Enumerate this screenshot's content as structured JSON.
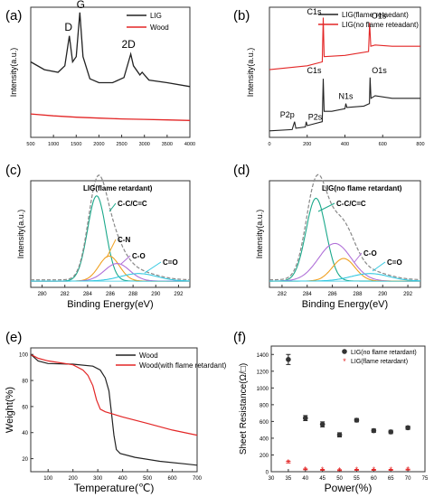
{
  "panels": {
    "a": {
      "tag": "(a)"
    },
    "b": {
      "tag": "(b)"
    },
    "c": {
      "tag": "(c)"
    },
    "d": {
      "tag": "(d)"
    },
    "e": {
      "tag": "(e)"
    },
    "f": {
      "tag": "(f)"
    }
  },
  "colors": {
    "black": "#222222",
    "red": "#e32626",
    "orange": "#f0a020",
    "cyan": "#35c8e0",
    "teal": "#1aa88a",
    "purple": "#b070d8",
    "dashed": "#888888"
  },
  "chart_data": [
    {
      "id": "a",
      "type": "line",
      "title": "",
      "xlabel": "",
      "ylabel": "Intensity(a.u.)",
      "xlim": [
        500,
        4000
      ],
      "xticks": [
        "500",
        "1000",
        "1500",
        "2000",
        "2500",
        "3000",
        "3500",
        "4000"
      ],
      "legend": {
        "placement": "top-right",
        "entries": [
          "LIG",
          "Wood"
        ]
      },
      "annotations": [
        "D",
        "G",
        "2D"
      ],
      "series": [
        {
          "name": "LIG",
          "color": "black",
          "points": [
            [
              500,
              0.58
            ],
            [
              800,
              0.52
            ],
            [
              1100,
              0.5
            ],
            [
              1250,
              0.55
            ],
            [
              1350,
              0.78
            ],
            [
              1420,
              0.58
            ],
            [
              1500,
              0.62
            ],
            [
              1580,
              0.96
            ],
            [
              1650,
              0.62
            ],
            [
              1800,
              0.45
            ],
            [
              2000,
              0.42
            ],
            [
              2300,
              0.42
            ],
            [
              2550,
              0.46
            ],
            [
              2650,
              0.58
            ],
            [
              2700,
              0.64
            ],
            [
              2760,
              0.55
            ],
            [
              2900,
              0.48
            ],
            [
              2950,
              0.5
            ],
            [
              3100,
              0.44
            ],
            [
              3500,
              0.42
            ],
            [
              4000,
              0.39
            ]
          ]
        },
        {
          "name": "Wood",
          "color": "red",
          "points": [
            [
              500,
              0.18
            ],
            [
              1000,
              0.165
            ],
            [
              1500,
              0.155
            ],
            [
              2000,
              0.148
            ],
            [
              2500,
              0.142
            ],
            [
              3000,
              0.138
            ],
            [
              3500,
              0.134
            ],
            [
              4000,
              0.13
            ]
          ]
        }
      ]
    },
    {
      "id": "b",
      "type": "line",
      "title": "",
      "xlabel": "",
      "ylabel": "Intensity(a.u.)",
      "xlim": [
        0,
        800
      ],
      "xticks": [
        "0",
        "200",
        "400",
        "600",
        "800"
      ],
      "legend": {
        "placement": "top-right",
        "entries": [
          "LIG(flame retaedant)",
          "LIG(no flame reteadant)"
        ]
      },
      "annotations": [
        "C1s",
        "O1s",
        "C1s",
        "O1s",
        "P2p",
        "P2s",
        "N1s"
      ],
      "series": [
        {
          "name": "LIG(flame retaedant)",
          "color": "black",
          "points": [
            [
              0,
              0.05
            ],
            [
              120,
              0.06
            ],
            [
              133,
              0.12
            ],
            [
              140,
              0.07
            ],
            [
              190,
              0.08
            ],
            [
              195,
              0.12
            ],
            [
              200,
              0.09
            ],
            [
              280,
              0.12
            ],
            [
              285,
              0.45
            ],
            [
              290,
              0.2
            ],
            [
              330,
              0.2
            ],
            [
              400,
              0.22
            ],
            [
              405,
              0.26
            ],
            [
              410,
              0.23
            ],
            [
              500,
              0.24
            ],
            [
              530,
              0.26
            ],
            [
              533,
              0.46
            ],
            [
              538,
              0.3
            ],
            [
              560,
              0.32
            ],
            [
              650,
              0.3
            ],
            [
              800,
              0.3
            ]
          ]
        },
        {
          "name": "LIG(no flame reteadant)",
          "color": "red",
          "points": [
            [
              0,
              0.52
            ],
            [
              200,
              0.55
            ],
            [
              280,
              0.58
            ],
            [
              285,
              0.92
            ],
            [
              290,
              0.62
            ],
            [
              400,
              0.63
            ],
            [
              525,
              0.66
            ],
            [
              531,
              0.88
            ],
            [
              537,
              0.7
            ],
            [
              560,
              0.71
            ],
            [
              650,
              0.7
            ],
            [
              800,
              0.7
            ]
          ]
        }
      ]
    },
    {
      "id": "c",
      "type": "line",
      "title": "LIG(flame retardant)",
      "xlabel": "Binding Energy(eV)",
      "ylabel": "Intensity(a.u.)",
      "xlim": [
        279,
        293
      ],
      "xticks": [
        "280",
        "282",
        "284",
        "286",
        "288",
        "290",
        "292"
      ],
      "annotations": [
        "C-C/C=C",
        "C-N",
        "C-O",
        "C=O"
      ],
      "peaks": [
        {
          "label": "C-C/C=C",
          "center": 284.8,
          "height": 0.68,
          "width": 0.8,
          "color": "teal"
        },
        {
          "label": "C-N",
          "center": 285.9,
          "height": 0.2,
          "width": 0.9,
          "color": "orange"
        },
        {
          "label": "C-O",
          "center": 286.6,
          "height": 0.14,
          "width": 1.1,
          "color": "purple"
        },
        {
          "label": "C=O",
          "center": 288.5,
          "height": 0.06,
          "width": 1.6,
          "color": "cyan"
        }
      ],
      "baseline": 0.05
    },
    {
      "id": "d",
      "type": "line",
      "title": "LIG(no flame retardant)",
      "xlabel": "Binding Energy(eV)",
      "ylabel": "Intensity(a.u.)",
      "xlim": [
        281,
        293
      ],
      "xticks": [
        "282",
        "284",
        "286",
        "288",
        "290",
        "292"
      ],
      "annotations": [
        "C-C/C=C",
        "C-O",
        "C=O"
      ],
      "peaks": [
        {
          "label": "C-C/C=C",
          "center": 284.7,
          "height": 0.66,
          "width": 0.8,
          "color": "teal"
        },
        {
          "label": "",
          "center": 286.2,
          "height": 0.3,
          "width": 1.3,
          "color": "purple"
        },
        {
          "label": "C-O",
          "center": 286.9,
          "height": 0.18,
          "width": 0.9,
          "color": "orange"
        },
        {
          "label": "C=O",
          "center": 289.0,
          "height": 0.06,
          "width": 1.5,
          "color": "cyan"
        }
      ],
      "baseline": 0.05
    },
    {
      "id": "e",
      "type": "line",
      "title": "",
      "xlabel": "Temperature(℃)",
      "ylabel": "Weight(%)",
      "xlim": [
        30,
        700
      ],
      "ylim": [
        10,
        105
      ],
      "xticks": [
        "100",
        "200",
        "300",
        "400",
        "500",
        "600",
        "700"
      ],
      "yticks": [
        "20",
        "40",
        "60",
        "80",
        "100"
      ],
      "legend": {
        "placement": "top-right",
        "entries": [
          "Wood",
          "Wood(with flame retardant)"
        ]
      },
      "series": [
        {
          "name": "Wood",
          "color": "black",
          "points": [
            [
              30,
              100
            ],
            [
              60,
              95
            ],
            [
              100,
              93
            ],
            [
              200,
              92.5
            ],
            [
              280,
              91
            ],
            [
              310,
              88
            ],
            [
              330,
              82
            ],
            [
              345,
              72
            ],
            [
              355,
              55
            ],
            [
              365,
              38
            ],
            [
              375,
              27
            ],
            [
              390,
              24
            ],
            [
              450,
              21
            ],
            [
              550,
              18
            ],
            [
              650,
              16
            ],
            [
              700,
              15
            ]
          ]
        },
        {
          "name": "Wood(with flame retardant)",
          "color": "red",
          "points": [
            [
              30,
              100
            ],
            [
              60,
              97
            ],
            [
              100,
              95
            ],
            [
              200,
              92
            ],
            [
              240,
              88
            ],
            [
              260,
              84
            ],
            [
              280,
              76
            ],
            [
              295,
              65
            ],
            [
              310,
              58
            ],
            [
              330,
              56
            ],
            [
              400,
              52
            ],
            [
              500,
              47
            ],
            [
              600,
              42
            ],
            [
              700,
              38
            ]
          ]
        }
      ]
    },
    {
      "id": "f",
      "type": "scatter",
      "title": "",
      "xlabel": "Power(%)",
      "ylabel": "Sheet Resistance(Ω/□)",
      "xlim": [
        30,
        75
      ],
      "ylim": [
        0,
        1500
      ],
      "xticks": [
        "30",
        "35",
        "40",
        "45",
        "50",
        "55",
        "60",
        "65",
        "70",
        "75"
      ],
      "yticks": [
        "0",
        "200",
        "400",
        "600",
        "800",
        "1000",
        "1200",
        "1400"
      ],
      "legend": {
        "placement": "top-right",
        "entries": [
          "LIG(no flame retardant)",
          "LIG(flame retardant)"
        ]
      },
      "series": [
        {
          "name": "LIG(no flame retardant)",
          "color": "black",
          "x": [
            35,
            40,
            45,
            50,
            55,
            60,
            65,
            70
          ],
          "y": [
            1340,
            640,
            565,
            440,
            615,
            490,
            475,
            525
          ],
          "err": [
            60,
            30,
            30,
            25,
            20,
            20,
            20,
            20
          ]
        },
        {
          "name": "LIG(flame retardant)",
          "color": "red",
          "x": [
            35,
            40,
            45,
            50,
            55,
            60,
            65,
            70
          ],
          "y": [
            115,
            28,
            22,
            18,
            22,
            22,
            22,
            25
          ],
          "err": [
            10,
            5,
            5,
            5,
            5,
            5,
            5,
            5
          ]
        }
      ]
    }
  ]
}
